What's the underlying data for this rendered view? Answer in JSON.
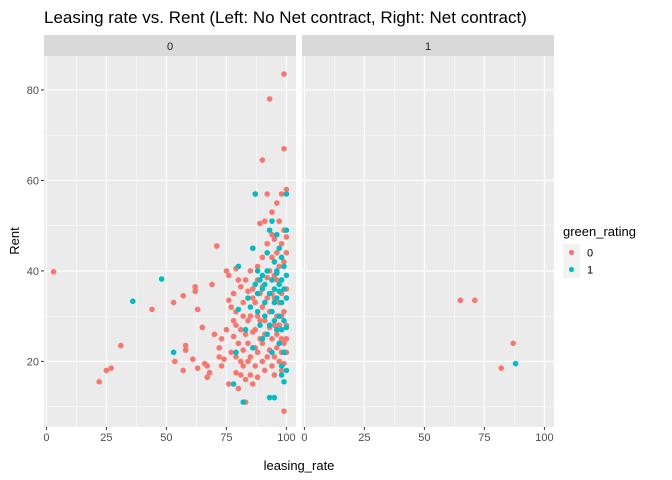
{
  "chart_data": {
    "type": "scatter",
    "title": "Leasing rate vs. Rent (Left: No Net contract, Right: Net contract)",
    "xlabel": "leasing_rate",
    "ylabel": "Rent",
    "xlim": [
      -1,
      104
    ],
    "ylim": [
      5.5,
      87.5
    ],
    "x_ticks": [
      0,
      25,
      50,
      75,
      100
    ],
    "y_ticks": [
      20,
      40,
      60,
      80
    ],
    "grid": true,
    "panel_background": "#ebebeb",
    "strip_background": "#d9d9d9",
    "legend": {
      "title": "green_rating",
      "position": "right",
      "entries": [
        {
          "label": "0",
          "color": "#f8766d"
        },
        {
          "label": "1",
          "color": "#00bfc4"
        }
      ]
    },
    "facets": [
      {
        "label": "0",
        "series": [
          {
            "group": "0",
            "color": "#f8766d",
            "points": [
              [
                3,
                39.8
              ],
              [
                22,
                15.5
              ],
              [
                25,
                18
              ],
              [
                27,
                18.5
              ],
              [
                31,
                23.5
              ],
              [
                44,
                31.5
              ],
              [
                53,
                33
              ],
              [
                53.5,
                20
              ],
              [
                57,
                34.5
              ],
              [
                57,
                18
              ],
              [
                58,
                23.5
              ],
              [
                58,
                22.5
              ],
              [
                61,
                20.5
              ],
              [
                62,
                35.5
              ],
              [
                62,
                36.5
              ],
              [
                63,
                31.5
              ],
              [
                63,
                18.5
              ],
              [
                65,
                27.5
              ],
              [
                66,
                19.5
              ],
              [
                67,
                16.5
              ],
              [
                67,
                19
              ],
              [
                68,
                17.5
              ],
              [
                69,
                37
              ],
              [
                70,
                26
              ],
              [
                71,
                45.5
              ],
              [
                72,
                23
              ],
              [
                72,
                21
              ],
              [
                73,
                19
              ],
              [
                73,
                25
              ],
              [
                74,
                20.5
              ],
              [
                75,
                40
              ],
              [
                75,
                27
              ],
              [
                76,
                33.5
              ],
              [
                76,
                39
              ],
              [
                76,
                15
              ],
              [
                77,
                32
              ],
              [
                77,
                22
              ],
              [
                78,
                25.5
              ],
              [
                78,
                29
              ],
              [
                78,
                35
              ],
              [
                79,
                17.5
              ],
              [
                79,
                28
              ],
              [
                79,
                21
              ],
              [
                79,
                31
              ],
              [
                79,
                40.5
              ],
              [
                80,
                14
              ],
              [
                80,
                38
              ],
              [
                80,
                24
              ],
              [
                81,
                17
              ],
              [
                81,
                20
              ],
              [
                81,
                27
              ],
              [
                81,
                36.5
              ],
              [
                82,
                30
              ],
              [
                82,
                19
              ],
              [
                82,
                33
              ],
              [
                82,
                22.5
              ],
              [
                83,
                11
              ],
              [
                83,
                26
              ],
              [
                83,
                38
              ],
              [
                83,
                16
              ],
              [
                84,
                29
              ],
              [
                84,
                20
              ],
              [
                84,
                35.5
              ],
              [
                84,
                24
              ],
              [
                85,
                17
              ],
              [
                85,
                40
              ],
              [
                85,
                30
              ],
              [
                85,
                21
              ],
              [
                86,
                36
              ],
              [
                86,
                26.5
              ],
              [
                86,
                15
              ],
              [
                86,
                34
              ],
              [
                86,
                45
              ],
              [
                87,
                19
              ],
              [
                87,
                23
              ],
              [
                87,
                27
              ],
              [
                87,
                33
              ],
              [
                87,
                57
              ],
              [
                88,
                38
              ],
              [
                88,
                22
              ],
              [
                88,
                41
              ],
              [
                88,
                30
              ],
              [
                88,
                16.5
              ],
              [
                89,
                50.5
              ],
              [
                89,
                25
              ],
              [
                89,
                29
              ],
              [
                89,
                35
              ],
              [
                90,
                20
              ],
              [
                90,
                32
              ],
              [
                90,
                64.5
              ],
              [
                90,
                36.5
              ],
              [
                90,
                24
              ],
              [
                90,
                43
              ],
              [
                91,
                26
              ],
              [
                91,
                18
              ],
              [
                91,
                29
              ],
              [
                91,
                51
              ],
              [
                92,
                34
              ],
              [
                92,
                21
              ],
              [
                92,
                38.5
              ],
              [
                92,
                46
              ],
              [
                92,
                57
              ],
              [
                93,
                78
              ],
              [
                93,
                31
              ],
              [
                93,
                22.5
              ],
              [
                93,
                27.5
              ],
              [
                93,
                40
              ],
              [
                94,
                53
              ],
              [
                94,
                19
              ],
              [
                94,
                25
              ],
              [
                94,
                35
              ],
              [
                94,
                43
              ],
              [
                94,
                48
              ],
              [
                95,
                21
              ],
              [
                95,
                28
              ],
              [
                95,
                34
              ],
              [
                95,
                39
              ],
              [
                95,
                47
              ],
              [
                95,
                17
              ],
              [
                96,
                26
              ],
              [
                96,
                30
              ],
              [
                96,
                44
              ],
              [
                96,
                55
              ],
              [
                96,
                38
              ],
              [
                96,
                23
              ],
              [
                97,
                20
              ],
              [
                97,
                33
              ],
              [
                97,
                41
              ],
              [
                97,
                51
              ],
              [
                97,
                28
              ],
              [
                98,
                22
              ],
              [
                98,
                25
              ],
              [
                98,
                35
              ],
              [
                98,
                46
              ],
              [
                98,
                57
              ],
              [
                98,
                30
              ],
              [
                98,
                18
              ],
              [
                99,
                83.5
              ],
              [
                99,
                67
              ],
              [
                99,
                49
              ],
              [
                99,
                42
              ],
              [
                99,
                31
              ],
              [
                99,
                24
              ],
              [
                99,
                19.5
              ],
              [
                99,
                9
              ],
              [
                100,
                58
              ],
              [
                100,
                44
              ],
              [
                100,
                36
              ],
              [
                100,
                28
              ],
              [
                100,
                22
              ],
              [
                100,
                47.5
              ],
              [
                100,
                34
              ],
              [
                100,
                25
              ]
            ]
          },
          {
            "group": "1",
            "color": "#00bfc4",
            "points": [
              [
                36,
                33.3
              ],
              [
                48,
                38.2
              ],
              [
                53,
                22
              ],
              [
                78,
                15
              ],
              [
                79,
                22
              ],
              [
                80,
                31.5
              ],
              [
                80,
                41
              ],
              [
                82,
                11
              ],
              [
                83,
                27
              ],
              [
                84,
                34
              ],
              [
                85,
                32
              ],
              [
                86,
                45
              ],
              [
                86,
                23
              ],
              [
                87,
                57
              ],
              [
                87,
                37
              ],
              [
                88,
                40
              ],
              [
                88,
                35
              ],
              [
                88,
                31
              ],
              [
                89,
                28
              ],
              [
                89,
                38
              ],
              [
                90,
                39
              ],
              [
                90,
                36
              ],
              [
                90,
                25
              ],
              [
                91,
                33
              ],
              [
                91,
                30
              ],
              [
                91,
                37
              ],
              [
                92,
                44
              ],
              [
                92,
                26
              ],
              [
                92,
                40
              ],
              [
                93,
                49
              ],
              [
                93,
                35
              ],
              [
                93,
                12
              ],
              [
                93,
                28
              ],
              [
                94,
                51
              ],
              [
                94,
                38
              ],
              [
                94,
                31
              ],
              [
                94,
                22
              ],
              [
                95,
                42
              ],
              [
                95,
                36
              ],
              [
                95,
                33
              ],
              [
                95,
                29
              ],
              [
                95,
                12
              ],
              [
                96,
                48
              ],
              [
                96,
                40
              ],
              [
                96,
                34
              ],
              [
                96,
                27
              ],
              [
                96,
                39.5
              ],
              [
                97,
                45
              ],
              [
                97,
                37
              ],
              [
                97,
                30
              ],
              [
                97,
                24
              ],
              [
                97,
                35.5
              ],
              [
                98,
                43
              ],
              [
                98,
                38
              ],
              [
                98,
                33
              ],
              [
                98,
                27
              ],
              [
                98,
                19
              ],
              [
                98,
                17
              ],
              [
                99,
                41
              ],
              [
                99,
                36
              ],
              [
                99,
                29
              ],
              [
                99,
                22
              ],
              [
                99,
                15.5
              ],
              [
                100,
                57
              ],
              [
                100,
                49
              ],
              [
                100,
                39
              ],
              [
                100,
                34
              ],
              [
                100,
                27.5
              ],
              [
                100,
                18
              ]
            ]
          }
        ]
      },
      {
        "label": "1",
        "series": [
          {
            "group": "0",
            "color": "#f8766d",
            "points": [
              [
                65,
                33.5
              ],
              [
                71,
                33.5
              ],
              [
                82,
                18.5
              ],
              [
                87,
                24
              ]
            ]
          },
          {
            "group": "1",
            "color": "#00bfc4",
            "points": [
              [
                88,
                19.5
              ]
            ]
          }
        ]
      }
    ]
  }
}
